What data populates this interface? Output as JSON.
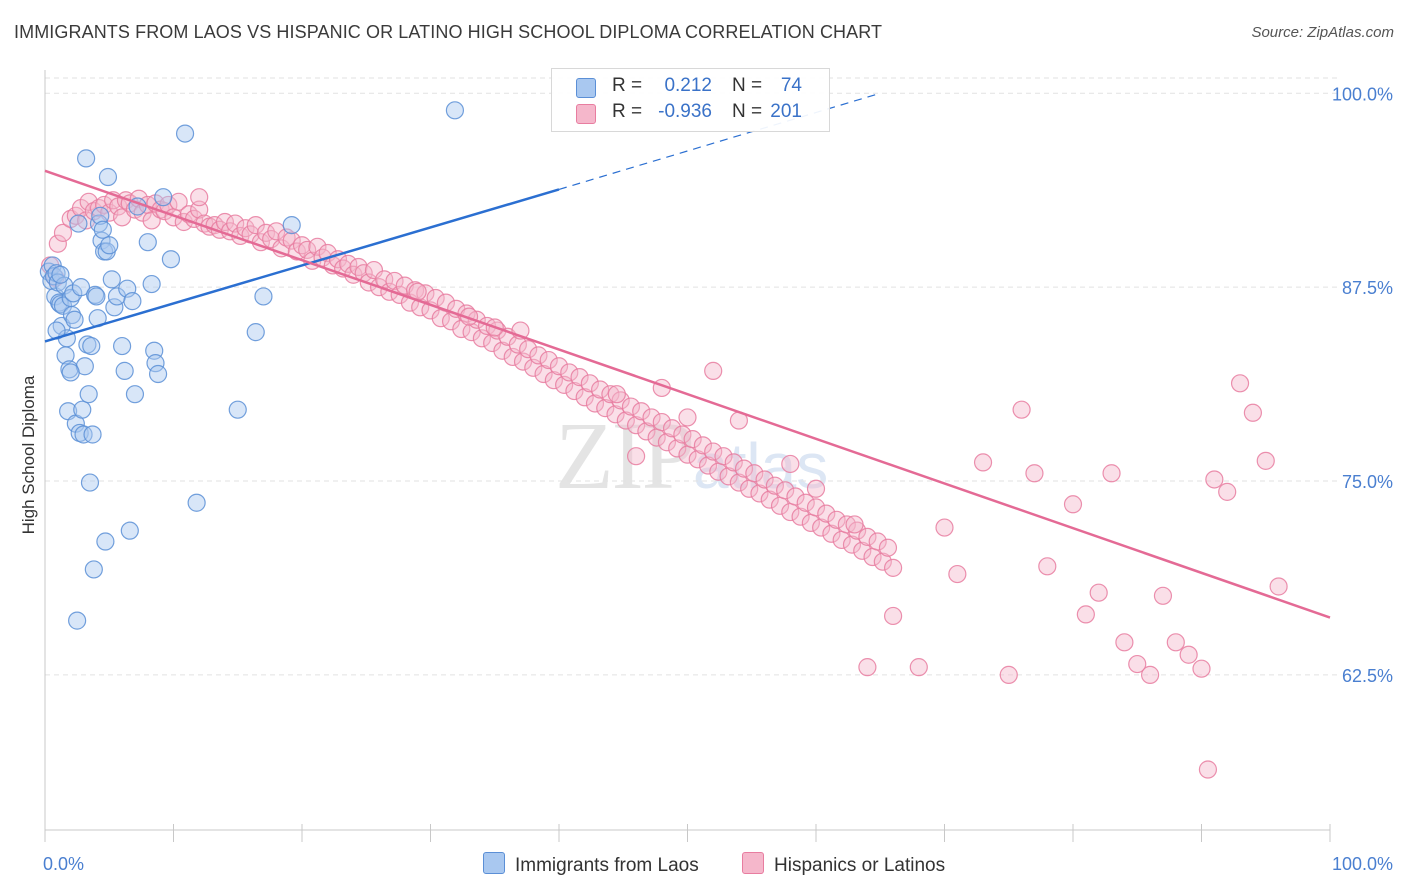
{
  "title": "IMMIGRANTS FROM LAOS VS HISPANIC OR LATINO HIGH SCHOOL DIPLOMA CORRELATION CHART",
  "source": "Source: ZipAtlas.com",
  "watermark": {
    "zip": "ZIP",
    "atlas": "atlas"
  },
  "legend": {
    "rows": [
      {
        "r_label": "R =",
        "r_value": "0.212",
        "n_label": "N =",
        "n_value": "74",
        "color": "#a9c8f0"
      },
      {
        "r_label": "R =",
        "r_value": "-0.936",
        "n_label": "N =",
        "n_value": "201",
        "color": "#f5b7cb"
      }
    ]
  },
  "bottom_legend": [
    {
      "label": "Immigrants from Laos",
      "color": "#a9c8f0"
    },
    {
      "label": "Hispanics or Latinos",
      "color": "#f5b7cb"
    }
  ],
  "colors": {
    "blue_fill": "#a9c8f0",
    "blue_stroke": "#5b8fd6",
    "blue_line": "#2b6fd1",
    "pink_fill": "#f5b7cb",
    "pink_stroke": "#e87da0",
    "pink_line": "#e46a95",
    "tick_text": "#4a7fd0",
    "grid": "#e2e2e2"
  },
  "chart_data": {
    "type": "scatter",
    "title": "IMMIGRANTS FROM LAOS VS HISPANIC OR LATINO HIGH SCHOOL DIPLOMA CORRELATION CHART",
    "xlabel": "",
    "ylabel": "High School Diploma",
    "xlim": [
      0,
      100
    ],
    "ylim": [
      52.5,
      101.5
    ],
    "x_tick_labels": [
      "0.0%",
      "100.0%"
    ],
    "y_ticks": [
      62.5,
      75.0,
      87.5,
      100.0
    ],
    "y_tick_labels": [
      "62.5%",
      "75.0%",
      "87.5%",
      "100.0%"
    ],
    "grid": true,
    "legend_position": "top-center",
    "series": [
      {
        "name": "Immigrants from Laos",
        "r": 0.212,
        "n": 74,
        "trend": {
          "x": [
            0,
            40
          ],
          "y": [
            84.0,
            93.8
          ],
          "dashed_to": [
            65,
            100.0
          ]
        },
        "points": [
          [
            0.3,
            88.5
          ],
          [
            0.5,
            87.9
          ],
          [
            0.6,
            88.9
          ],
          [
            0.7,
            88.2
          ],
          [
            0.8,
            86.9
          ],
          [
            0.9,
            88.4
          ],
          [
            1.0,
            87.8
          ],
          [
            1.1,
            86.5
          ],
          [
            1.2,
            86.4
          ],
          [
            1.3,
            85.0
          ],
          [
            1.4,
            86.3
          ],
          [
            1.5,
            87.6
          ],
          [
            1.6,
            83.1
          ],
          [
            1.7,
            84.2
          ],
          [
            1.8,
            79.5
          ],
          [
            1.9,
            82.2
          ],
          [
            2.0,
            86.8
          ],
          [
            2.1,
            85.7
          ],
          [
            2.2,
            87.1
          ],
          [
            2.3,
            85.4
          ],
          [
            2.4,
            78.7
          ],
          [
            2.5,
            66.0
          ],
          [
            2.6,
            91.6
          ],
          [
            2.7,
            78.1
          ],
          [
            2.8,
            87.5
          ],
          [
            2.9,
            79.6
          ],
          [
            3.0,
            78.0
          ],
          [
            3.1,
            82.4
          ],
          [
            3.2,
            95.8
          ],
          [
            3.3,
            83.8
          ],
          [
            3.4,
            80.6
          ],
          [
            3.5,
            74.9
          ],
          [
            3.6,
            83.7
          ],
          [
            3.7,
            78.0
          ],
          [
            3.8,
            69.3
          ],
          [
            3.9,
            87.0
          ],
          [
            4.0,
            86.9
          ],
          [
            4.1,
            85.5
          ],
          [
            4.2,
            91.6
          ],
          [
            4.3,
            92.1
          ],
          [
            4.4,
            90.5
          ],
          [
            4.5,
            91.2
          ],
          [
            4.6,
            89.8
          ],
          [
            4.7,
            71.1
          ],
          [
            4.8,
            89.8
          ],
          [
            4.9,
            94.6
          ],
          [
            5.0,
            90.2
          ],
          [
            5.2,
            88.0
          ],
          [
            5.4,
            86.2
          ],
          [
            5.6,
            86.9
          ],
          [
            6.0,
            83.7
          ],
          [
            6.2,
            82.1
          ],
          [
            6.4,
            87.4
          ],
          [
            6.6,
            71.8
          ],
          [
            6.8,
            86.6
          ],
          [
            7.0,
            80.6
          ],
          [
            7.2,
            92.7
          ],
          [
            8.0,
            90.4
          ],
          [
            8.3,
            87.7
          ],
          [
            8.5,
            83.4
          ],
          [
            8.6,
            82.6
          ],
          [
            8.8,
            81.9
          ],
          [
            9.2,
            93.3
          ],
          [
            9.8,
            89.3
          ],
          [
            10.9,
            97.4
          ],
          [
            11.8,
            73.6
          ],
          [
            15.0,
            79.6
          ],
          [
            16.4,
            84.6
          ],
          [
            17.0,
            86.9
          ],
          [
            19.2,
            91.5
          ],
          [
            31.9,
            98.9
          ],
          [
            0.9,
            84.7
          ],
          [
            2.0,
            82.0
          ],
          [
            1.2,
            88.3
          ]
        ]
      },
      {
        "name": "Hispanics or Latinos",
        "r": -0.936,
        "n": 201,
        "trend": {
          "x": [
            0,
            100
          ],
          "y": [
            95.0,
            66.2
          ]
        },
        "points": [
          [
            0.4,
            88.9
          ],
          [
            0.8,
            88.1
          ],
          [
            1.0,
            90.3
          ],
          [
            1.4,
            91.0
          ],
          [
            2.0,
            91.9
          ],
          [
            2.4,
            92.1
          ],
          [
            2.8,
            92.6
          ],
          [
            3.2,
            91.8
          ],
          [
            3.4,
            93.0
          ],
          [
            3.8,
            92.4
          ],
          [
            4.2,
            92.6
          ],
          [
            4.6,
            92.8
          ],
          [
            5.0,
            92.3
          ],
          [
            5.3,
            93.1
          ],
          [
            5.7,
            92.7
          ],
          [
            6.0,
            92.0
          ],
          [
            6.3,
            93.1
          ],
          [
            6.6,
            92.9
          ],
          [
            7.0,
            92.5
          ],
          [
            7.3,
            93.2
          ],
          [
            7.6,
            92.3
          ],
          [
            8.0,
            92.8
          ],
          [
            8.3,
            91.8
          ],
          [
            8.6,
            92.9
          ],
          [
            9.0,
            92.5
          ],
          [
            9.3,
            92.4
          ],
          [
            9.6,
            92.8
          ],
          [
            10.0,
            92.0
          ],
          [
            10.4,
            93.0
          ],
          [
            10.8,
            91.7
          ],
          [
            11.2,
            92.2
          ],
          [
            11.6,
            91.9
          ],
          [
            12.0,
            92.5
          ],
          [
            12.4,
            91.6
          ],
          [
            12.8,
            91.4
          ],
          [
            13.2,
            91.5
          ],
          [
            13.6,
            91.2
          ],
          [
            14.0,
            91.7
          ],
          [
            14.4,
            91.1
          ],
          [
            14.8,
            91.6
          ],
          [
            15.2,
            90.8
          ],
          [
            15.6,
            91.3
          ],
          [
            16.0,
            90.9
          ],
          [
            16.4,
            91.5
          ],
          [
            16.8,
            90.4
          ],
          [
            17.2,
            91.0
          ],
          [
            17.6,
            90.6
          ],
          [
            18.0,
            91.1
          ],
          [
            18.4,
            90.0
          ],
          [
            18.8,
            90.7
          ],
          [
            19.2,
            90.5
          ],
          [
            19.6,
            89.8
          ],
          [
            20.0,
            90.2
          ],
          [
            20.4,
            89.9
          ],
          [
            20.8,
            89.2
          ],
          [
            21.2,
            90.1
          ],
          [
            21.6,
            89.4
          ],
          [
            22.0,
            89.7
          ],
          [
            22.4,
            88.9
          ],
          [
            22.8,
            89.3
          ],
          [
            23.2,
            88.7
          ],
          [
            23.6,
            89.0
          ],
          [
            24.0,
            88.3
          ],
          [
            24.4,
            88.8
          ],
          [
            24.8,
            88.4
          ],
          [
            25.2,
            87.8
          ],
          [
            25.6,
            88.6
          ],
          [
            26.0,
            87.5
          ],
          [
            26.4,
            88.0
          ],
          [
            26.8,
            87.2
          ],
          [
            27.2,
            87.9
          ],
          [
            27.6,
            87.0
          ],
          [
            28.0,
            87.6
          ],
          [
            28.4,
            86.5
          ],
          [
            28.8,
            87.3
          ],
          [
            29.2,
            86.2
          ],
          [
            29.6,
            87.1
          ],
          [
            30.0,
            86.0
          ],
          [
            30.4,
            86.8
          ],
          [
            30.8,
            85.5
          ],
          [
            31.2,
            86.5
          ],
          [
            31.6,
            85.3
          ],
          [
            32.0,
            86.1
          ],
          [
            32.4,
            84.8
          ],
          [
            32.8,
            85.8
          ],
          [
            33.2,
            84.6
          ],
          [
            33.6,
            85.4
          ],
          [
            34.0,
            84.2
          ],
          [
            34.4,
            85.0
          ],
          [
            34.8,
            83.9
          ],
          [
            35.2,
            84.7
          ],
          [
            35.6,
            83.4
          ],
          [
            36.0,
            84.3
          ],
          [
            36.4,
            83.0
          ],
          [
            36.8,
            83.8
          ],
          [
            37.2,
            82.7
          ],
          [
            37.6,
            83.5
          ],
          [
            38.0,
            82.3
          ],
          [
            38.4,
            83.1
          ],
          [
            38.8,
            81.9
          ],
          [
            39.2,
            82.8
          ],
          [
            39.6,
            81.5
          ],
          [
            40.0,
            82.4
          ],
          [
            40.4,
            81.2
          ],
          [
            40.8,
            82.0
          ],
          [
            41.2,
            80.8
          ],
          [
            41.6,
            81.7
          ],
          [
            42.0,
            80.4
          ],
          [
            42.4,
            81.3
          ],
          [
            42.8,
            80.0
          ],
          [
            43.2,
            80.9
          ],
          [
            43.6,
            79.7
          ],
          [
            44.0,
            80.6
          ],
          [
            44.4,
            79.3
          ],
          [
            44.8,
            80.2
          ],
          [
            45.2,
            78.9
          ],
          [
            45.6,
            79.8
          ],
          [
            46.0,
            78.6
          ],
          [
            46.4,
            79.5
          ],
          [
            46.8,
            78.2
          ],
          [
            47.2,
            79.1
          ],
          [
            47.6,
            77.8
          ],
          [
            48.0,
            78.8
          ],
          [
            48.4,
            77.5
          ],
          [
            48.8,
            78.4
          ],
          [
            49.2,
            77.1
          ],
          [
            49.6,
            78.0
          ],
          [
            50.0,
            76.7
          ],
          [
            50.4,
            77.7
          ],
          [
            50.8,
            76.4
          ],
          [
            51.2,
            77.3
          ],
          [
            51.6,
            76.0
          ],
          [
            52.0,
            76.9
          ],
          [
            52.4,
            75.6
          ],
          [
            52.8,
            76.6
          ],
          [
            53.2,
            75.3
          ],
          [
            53.6,
            76.2
          ],
          [
            54.0,
            74.9
          ],
          [
            54.4,
            75.8
          ],
          [
            54.8,
            74.5
          ],
          [
            55.2,
            75.5
          ],
          [
            55.6,
            74.2
          ],
          [
            56.0,
            75.1
          ],
          [
            56.4,
            73.8
          ],
          [
            56.8,
            74.7
          ],
          [
            57.2,
            73.4
          ],
          [
            57.6,
            74.4
          ],
          [
            58.0,
            73.0
          ],
          [
            58.4,
            74.0
          ],
          [
            58.8,
            72.7
          ],
          [
            59.2,
            73.6
          ],
          [
            59.6,
            72.3
          ],
          [
            60.0,
            73.3
          ],
          [
            60.4,
            72.0
          ],
          [
            60.8,
            72.9
          ],
          [
            61.2,
            71.6
          ],
          [
            61.6,
            72.5
          ],
          [
            62.0,
            71.2
          ],
          [
            62.4,
            72.2
          ],
          [
            62.8,
            70.9
          ],
          [
            63.2,
            71.8
          ],
          [
            63.6,
            70.5
          ],
          [
            64.0,
            71.4
          ],
          [
            64.4,
            70.1
          ],
          [
            64.8,
            71.1
          ],
          [
            65.2,
            69.8
          ],
          [
            65.6,
            70.7
          ],
          [
            66.0,
            69.4
          ],
          [
            12.0,
            93.3
          ],
          [
            29.0,
            87.2
          ],
          [
            33.0,
            85.6
          ],
          [
            35.0,
            84.9
          ],
          [
            37.0,
            84.7
          ],
          [
            44.5,
            80.6
          ],
          [
            46.0,
            76.6
          ],
          [
            48.0,
            81.0
          ],
          [
            50.0,
            79.1
          ],
          [
            52.0,
            82.1
          ],
          [
            54.0,
            78.9
          ],
          [
            58.0,
            76.1
          ],
          [
            60.0,
            74.5
          ],
          [
            63.0,
            72.2
          ],
          [
            64.0,
            63.0
          ],
          [
            66.0,
            66.3
          ],
          [
            68.0,
            63.0
          ],
          [
            70.0,
            72.0
          ],
          [
            71.0,
            69.0
          ],
          [
            73.0,
            76.2
          ],
          [
            75.0,
            62.5
          ],
          [
            76.0,
            79.6
          ],
          [
            77.0,
            75.5
          ],
          [
            78.0,
            69.5
          ],
          [
            80.0,
            73.5
          ],
          [
            81.0,
            66.4
          ],
          [
            82.0,
            67.8
          ],
          [
            83.0,
            75.5
          ],
          [
            84.0,
            64.6
          ],
          [
            85.0,
            63.2
          ],
          [
            86.0,
            62.5
          ],
          [
            87.0,
            67.6
          ],
          [
            88.0,
            64.6
          ],
          [
            89.0,
            63.8
          ],
          [
            90.0,
            62.9
          ],
          [
            91.0,
            75.1
          ],
          [
            92.0,
            74.3
          ],
          [
            93.0,
            81.3
          ],
          [
            94.0,
            79.4
          ],
          [
            95.0,
            76.3
          ],
          [
            96.0,
            68.2
          ],
          [
            90.5,
            56.4
          ]
        ]
      }
    ]
  }
}
